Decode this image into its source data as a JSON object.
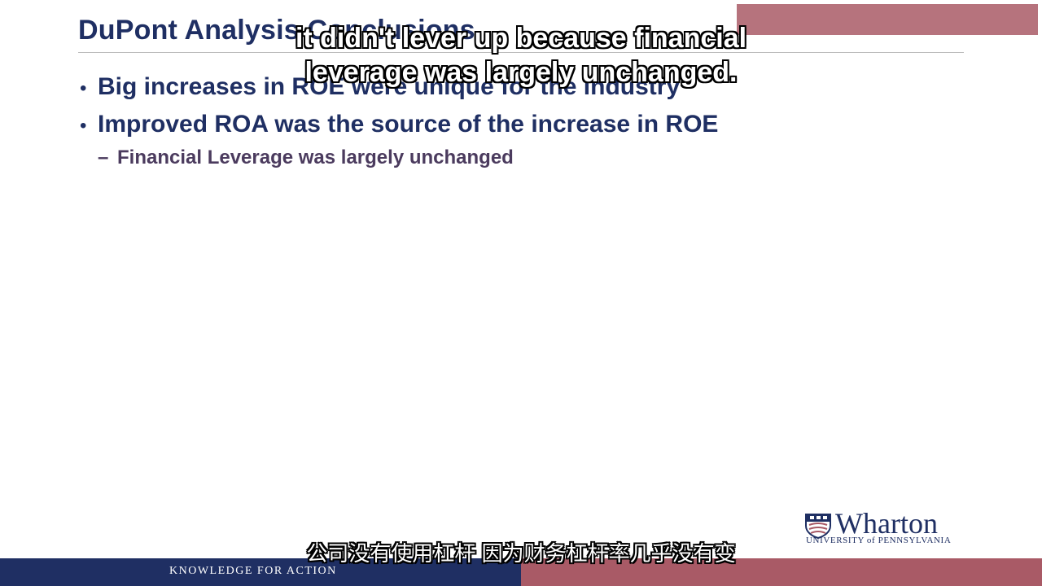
{
  "slide": {
    "title": "DuPont Analysis Conclusions",
    "bullets": [
      "Big increases in ROE were unique for the industry",
      "Improved ROA was the source of the increase in ROE"
    ],
    "sub_bullets": [
      "Financial Leverage was largely unchanged"
    ],
    "bullet_glyph": "•",
    "sub_bullet_glyph": "–"
  },
  "subtitles": {
    "english_lines": [
      "it didn't lever up because financial",
      "leverage was largely unchanged."
    ],
    "chinese": "公司没有使用杠杆 因为财务杠杆率几乎没有变"
  },
  "logo": {
    "wordmark": "Wharton",
    "subtext": "UNIVERSITY of PENNSYLVANIA",
    "icon": "penn-shield-icon"
  },
  "footer": {
    "tagline": "KNOWLEDGE FOR ACTION"
  },
  "colors": {
    "navy": "#1f2f63",
    "burgundy": "#a95a66",
    "sub_text": "#4b3b5e"
  }
}
